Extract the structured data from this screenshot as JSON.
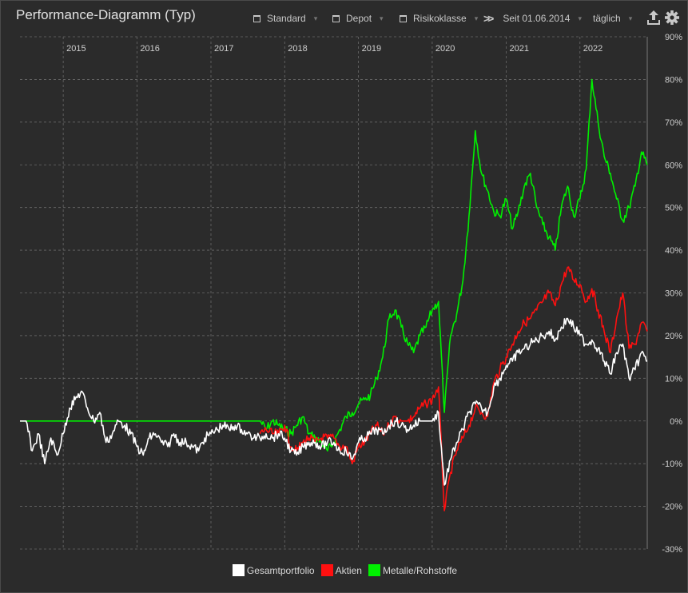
{
  "app": {
    "title": "Performance-Diagramm (Typ)"
  },
  "toolbar": {
    "standard_label": "Standard",
    "depot_label": "Depot",
    "risk_label": "Risikoklasse",
    "since_label": "Seit 01.06.2014",
    "interval_label": "täglich"
  },
  "colors": {
    "background": "#2b2b2b",
    "grid": "#6a6a6a",
    "gesamt": "#ffffff",
    "aktien": "#ff1010",
    "metalle": "#00f000"
  },
  "chart_data": {
    "type": "line",
    "title": "Performance-Diagramm (Typ)",
    "xlabel": "",
    "ylabel": "",
    "x_range": [
      "2014-06-01",
      "2022-11-30"
    ],
    "xticks": [
      "2015",
      "2016",
      "2017",
      "2018",
      "2019",
      "2020",
      "2021",
      "2022"
    ],
    "ylim": [
      -30,
      90
    ],
    "yticks": [
      "90%",
      "80%",
      "70%",
      "60%",
      "50%",
      "40%",
      "30%",
      "20%",
      "10%",
      "0%",
      "-10%",
      "-20%",
      "-30%"
    ],
    "grid": true,
    "legend_position": "bottom",
    "series": [
      {
        "name": "Gesamtportfolio",
        "color": "#ffffff",
        "points": [
          [
            "2014-06-01",
            0
          ],
          [
            "2014-07-01",
            0
          ],
          [
            "2014-08-01",
            -7
          ],
          [
            "2014-09-01",
            -3
          ],
          [
            "2014-10-01",
            -10
          ],
          [
            "2014-11-01",
            -4
          ],
          [
            "2014-12-01",
            -8
          ],
          [
            "2015-01-01",
            -3
          ],
          [
            "2015-02-01",
            3
          ],
          [
            "2015-03-01",
            5
          ],
          [
            "2015-04-01",
            7
          ],
          [
            "2015-05-01",
            3
          ],
          [
            "2015-06-01",
            0
          ],
          [
            "2015-07-01",
            2
          ],
          [
            "2015-08-01",
            -5
          ],
          [
            "2015-09-01",
            -3
          ],
          [
            "2015-10-01",
            0
          ],
          [
            "2015-11-01",
            -1
          ],
          [
            "2015-12-01",
            -3
          ],
          [
            "2016-01-01",
            -6
          ],
          [
            "2016-02-01",
            -8
          ],
          [
            "2016-03-01",
            -4
          ],
          [
            "2016-04-01",
            -3
          ],
          [
            "2016-05-01",
            -5
          ],
          [
            "2016-06-01",
            -6
          ],
          [
            "2016-07-01",
            -3
          ],
          [
            "2016-08-01",
            -5
          ],
          [
            "2016-09-01",
            -5
          ],
          [
            "2016-10-01",
            -6
          ],
          [
            "2016-11-01",
            -7
          ],
          [
            "2016-12-01",
            -4
          ],
          [
            "2017-01-01",
            -3
          ],
          [
            "2017-02-01",
            -2
          ],
          [
            "2017-03-01",
            -1
          ],
          [
            "2017-04-01",
            -2
          ],
          [
            "2017-05-01",
            -1
          ],
          [
            "2017-06-01",
            -2
          ],
          [
            "2017-07-01",
            -3
          ],
          [
            "2017-08-01",
            -4
          ],
          [
            "2017-09-01",
            -4
          ],
          [
            "2017-10-01",
            -3
          ],
          [
            "2017-11-01",
            -4
          ],
          [
            "2017-12-01",
            -3
          ],
          [
            "2018-01-01",
            -4
          ],
          [
            "2018-02-01",
            -7
          ],
          [
            "2018-03-01",
            -8
          ],
          [
            "2018-04-01",
            -6
          ],
          [
            "2018-05-01",
            -5
          ],
          [
            "2018-06-01",
            -5
          ],
          [
            "2018-07-01",
            -6
          ],
          [
            "2018-08-01",
            -5
          ],
          [
            "2018-09-01",
            -5
          ],
          [
            "2018-10-01",
            -7
          ],
          [
            "2018-11-01",
            -7
          ],
          [
            "2018-12-01",
            -9
          ],
          [
            "2019-01-01",
            -5
          ],
          [
            "2019-02-01",
            -4
          ],
          [
            "2019-03-01",
            -3
          ],
          [
            "2019-04-01",
            -2
          ],
          [
            "2019-05-01",
            -3
          ],
          [
            "2019-06-01",
            -1
          ],
          [
            "2019-07-01",
            0
          ],
          [
            "2019-08-01",
            -1
          ],
          [
            "2019-09-01",
            -2
          ],
          [
            "2019-10-01",
            -1
          ],
          [
            "2019-11-01",
            0
          ],
          [
            "2019-12-01",
            0
          ],
          [
            "2020-01-01",
            0
          ],
          [
            "2020-02-01",
            2
          ],
          [
            "2020-03-01",
            -15
          ],
          [
            "2020-04-01",
            -9
          ],
          [
            "2020-05-01",
            -5
          ],
          [
            "2020-06-01",
            -2
          ],
          [
            "2020-07-01",
            2
          ],
          [
            "2020-08-01",
            4
          ],
          [
            "2020-09-01",
            3
          ],
          [
            "2020-10-01",
            2
          ],
          [
            "2020-11-01",
            8
          ],
          [
            "2020-12-01",
            10
          ],
          [
            "2021-01-01",
            13
          ],
          [
            "2021-02-01",
            14
          ],
          [
            "2021-03-01",
            16
          ],
          [
            "2021-04-01",
            17
          ],
          [
            "2021-05-01",
            18
          ],
          [
            "2021-06-01",
            19
          ],
          [
            "2021-07-01",
            20
          ],
          [
            "2021-08-01",
            21
          ],
          [
            "2021-09-01",
            19
          ],
          [
            "2021-10-01",
            22
          ],
          [
            "2021-11-01",
            24
          ],
          [
            "2021-12-01",
            22
          ],
          [
            "2022-01-01",
            20
          ],
          [
            "2022-02-01",
            18
          ],
          [
            "2022-03-01",
            19
          ],
          [
            "2022-04-01",
            17
          ],
          [
            "2022-05-01",
            14
          ],
          [
            "2022-06-01",
            11
          ],
          [
            "2022-07-01",
            16
          ],
          [
            "2022-08-01",
            18
          ],
          [
            "2022-09-01",
            10
          ],
          [
            "2022-10-01",
            12
          ],
          [
            "2022-11-01",
            16
          ],
          [
            "2022-11-30",
            14
          ]
        ]
      },
      {
        "name": "Aktien",
        "color": "#ff1010",
        "points": [
          [
            "2017-09-01",
            -3
          ],
          [
            "2017-10-01",
            -2
          ],
          [
            "2017-11-01",
            -3
          ],
          [
            "2017-12-01",
            -3
          ],
          [
            "2018-01-01",
            -1
          ],
          [
            "2018-02-01",
            -6
          ],
          [
            "2018-03-01",
            -7
          ],
          [
            "2018-04-01",
            -5
          ],
          [
            "2018-05-01",
            -4
          ],
          [
            "2018-06-01",
            -5
          ],
          [
            "2018-07-01",
            -4
          ],
          [
            "2018-08-01",
            -4
          ],
          [
            "2018-09-01",
            -4
          ],
          [
            "2018-10-01",
            -6
          ],
          [
            "2018-11-01",
            -6
          ],
          [
            "2018-12-01",
            -10
          ],
          [
            "2019-01-01",
            -6
          ],
          [
            "2019-02-01",
            -5
          ],
          [
            "2019-03-01",
            -3
          ],
          [
            "2019-04-01",
            -1
          ],
          [
            "2019-05-01",
            -3
          ],
          [
            "2019-06-01",
            -1
          ],
          [
            "2019-07-01",
            1
          ],
          [
            "2019-08-01",
            0
          ],
          [
            "2019-09-01",
            0
          ],
          [
            "2019-10-01",
            1
          ],
          [
            "2019-11-01",
            3
          ],
          [
            "2019-12-01",
            4
          ],
          [
            "2020-01-01",
            5
          ],
          [
            "2020-02-01",
            8
          ],
          [
            "2020-03-01",
            -21
          ],
          [
            "2020-04-01",
            -12
          ],
          [
            "2020-05-01",
            -7
          ],
          [
            "2020-06-01",
            -4
          ],
          [
            "2020-07-01",
            -1
          ],
          [
            "2020-08-01",
            3
          ],
          [
            "2020-09-01",
            2
          ],
          [
            "2020-10-01",
            1
          ],
          [
            "2020-11-01",
            9
          ],
          [
            "2020-12-01",
            12
          ],
          [
            "2021-01-01",
            15
          ],
          [
            "2021-02-01",
            18
          ],
          [
            "2021-03-01",
            21
          ],
          [
            "2021-04-01",
            23
          ],
          [
            "2021-05-01",
            24
          ],
          [
            "2021-06-01",
            26
          ],
          [
            "2021-07-01",
            28
          ],
          [
            "2021-08-01",
            30
          ],
          [
            "2021-09-01",
            27
          ],
          [
            "2021-10-01",
            32
          ],
          [
            "2021-11-01",
            36
          ],
          [
            "2021-12-01",
            33
          ],
          [
            "2022-01-01",
            32
          ],
          [
            "2022-02-01",
            28
          ],
          [
            "2022-03-01",
            31
          ],
          [
            "2022-04-01",
            26
          ],
          [
            "2022-05-01",
            21
          ],
          [
            "2022-06-01",
            16
          ],
          [
            "2022-07-01",
            24
          ],
          [
            "2022-08-01",
            30
          ],
          [
            "2022-09-01",
            17
          ],
          [
            "2022-10-01",
            18
          ],
          [
            "2022-11-01",
            23
          ],
          [
            "2022-11-30",
            21
          ]
        ]
      },
      {
        "name": "Metalle/Rohstoffe",
        "color": "#00f000",
        "points": [
          [
            "2014-06-01",
            0
          ],
          [
            "2015-01-01",
            0
          ],
          [
            "2016-01-01",
            0
          ],
          [
            "2017-01-01",
            0
          ],
          [
            "2017-07-01",
            0
          ],
          [
            "2017-09-01",
            0
          ],
          [
            "2017-10-01",
            -2
          ],
          [
            "2017-11-01",
            0
          ],
          [
            "2017-12-01",
            -1
          ],
          [
            "2018-01-01",
            -2
          ],
          [
            "2018-02-01",
            -3
          ],
          [
            "2018-03-01",
            -1
          ],
          [
            "2018-04-01",
            1
          ],
          [
            "2018-05-01",
            -3
          ],
          [
            "2018-06-01",
            -4
          ],
          [
            "2018-07-01",
            -5
          ],
          [
            "2018-08-01",
            -7
          ],
          [
            "2018-09-01",
            -5
          ],
          [
            "2018-10-01",
            -2
          ],
          [
            "2018-11-01",
            1
          ],
          [
            "2018-12-01",
            2
          ],
          [
            "2019-01-01",
            4
          ],
          [
            "2019-02-01",
            5
          ],
          [
            "2019-03-01",
            6
          ],
          [
            "2019-04-01",
            10
          ],
          [
            "2019-05-01",
            15
          ],
          [
            "2019-06-01",
            24
          ],
          [
            "2019-07-01",
            26
          ],
          [
            "2019-08-01",
            22
          ],
          [
            "2019-09-01",
            18
          ],
          [
            "2019-10-01",
            16
          ],
          [
            "2019-11-01",
            20
          ],
          [
            "2019-12-01",
            22
          ],
          [
            "2020-01-01",
            26
          ],
          [
            "2020-02-01",
            28
          ],
          [
            "2020-03-01",
            2
          ],
          [
            "2020-04-01",
            20
          ],
          [
            "2020-05-01",
            25
          ],
          [
            "2020-06-01",
            33
          ],
          [
            "2020-07-01",
            48
          ],
          [
            "2020-08-01",
            68
          ],
          [
            "2020-09-01",
            58
          ],
          [
            "2020-10-01",
            54
          ],
          [
            "2020-11-01",
            49
          ],
          [
            "2020-12-01",
            48
          ],
          [
            "2021-01-01",
            52
          ],
          [
            "2021-02-01",
            45
          ],
          [
            "2021-03-01",
            49
          ],
          [
            "2021-04-01",
            55
          ],
          [
            "2021-05-01",
            58
          ],
          [
            "2021-06-01",
            50
          ],
          [
            "2021-07-01",
            46
          ],
          [
            "2021-08-01",
            43
          ],
          [
            "2021-09-01",
            40
          ],
          [
            "2021-10-01",
            50
          ],
          [
            "2021-11-01",
            55
          ],
          [
            "2021-12-01",
            48
          ],
          [
            "2022-01-01",
            52
          ],
          [
            "2022-02-01",
            59
          ],
          [
            "2022-03-01",
            80
          ],
          [
            "2022-04-01",
            70
          ],
          [
            "2022-05-01",
            62
          ],
          [
            "2022-06-01",
            58
          ],
          [
            "2022-07-01",
            52
          ],
          [
            "2022-08-01",
            47
          ],
          [
            "2022-09-01",
            50
          ],
          [
            "2022-10-01",
            55
          ],
          [
            "2022-11-01",
            63
          ],
          [
            "2022-11-30",
            60
          ]
        ]
      }
    ]
  }
}
